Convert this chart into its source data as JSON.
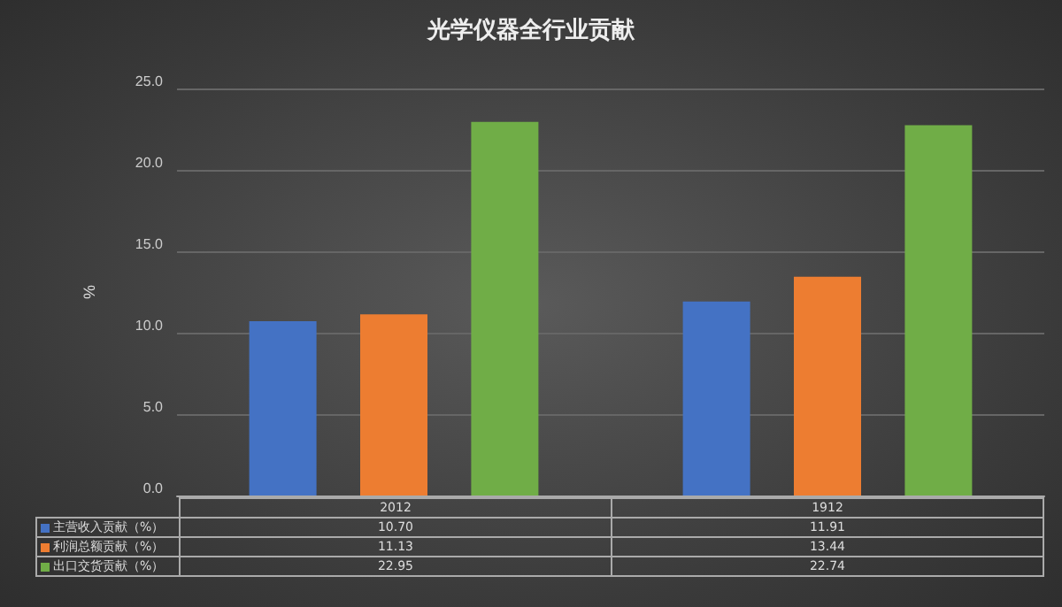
{
  "chart_data": {
    "type": "bar",
    "title": "光学仪器全行业贡献",
    "ylabel": "%",
    "categories": [
      "2012",
      "1912"
    ],
    "series": [
      {
        "name": "主营收入贡献（%）",
        "color": "#4472c4",
        "values": [
          10.7,
          11.91
        ],
        "value_labels": [
          "10.70",
          "11.91"
        ]
      },
      {
        "name": "利润总额贡献（%）",
        "color": "#ed7d31",
        "values": [
          11.13,
          13.44
        ],
        "value_labels": [
          "11.13",
          "13.44"
        ]
      },
      {
        "name": "出口交货贡献（%）",
        "color": "#70ad47",
        "values": [
          22.95,
          22.74
        ],
        "value_labels": [
          "22.95",
          "22.74"
        ]
      }
    ],
    "ylim": [
      0,
      25
    ],
    "yticks": [
      {
        "value": 0,
        "label": "0.0"
      },
      {
        "value": 5,
        "label": "5.0"
      },
      {
        "value": 10,
        "label": "10.0"
      },
      {
        "value": 15,
        "label": "15.0"
      },
      {
        "value": 20,
        "label": "20.0"
      },
      {
        "value": 25,
        "label": "25.0"
      }
    ],
    "grid": "y",
    "legend": "bottom"
  }
}
